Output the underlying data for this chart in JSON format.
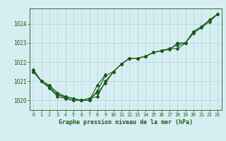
{
  "title": "Graphe pression niveau de la mer (hPa)",
  "background_color": "#d6eef2",
  "grid_color": "#b0d4dc",
  "line_color": "#1a5c1a",
  "xlim": [
    -0.5,
    23.5
  ],
  "ylim": [
    1019.5,
    1024.8
  ],
  "yticks": [
    1020,
    1021,
    1022,
    1023,
    1024
  ],
  "xticks": [
    0,
    1,
    2,
    3,
    4,
    5,
    6,
    7,
    8,
    9,
    10,
    11,
    12,
    13,
    14,
    15,
    16,
    17,
    18,
    19,
    20,
    21,
    22,
    23
  ],
  "series": [
    {
      "x": [
        0,
        1,
        2,
        3,
        4,
        5,
        6,
        7,
        8,
        9,
        10,
        11,
        12,
        13,
        14,
        15,
        16,
        17,
        18,
        19,
        20,
        21,
        22,
        23
      ],
      "y": [
        1021.6,
        1021.0,
        1020.8,
        1020.4,
        1020.2,
        1020.1,
        1020.0,
        1020.1,
        1020.2,
        1021.0,
        1021.5,
        1021.9,
        1022.2,
        1022.2,
        1022.3,
        1022.5,
        1022.6,
        1022.7,
        1022.9,
        1023.0,
        1023.5,
        1023.8,
        1024.1,
        1024.5
      ]
    },
    {
      "x": [
        0,
        1,
        2,
        3,
        4,
        5,
        6,
        7,
        8,
        9,
        10,
        11,
        12,
        13,
        14,
        15,
        16,
        17,
        18,
        19,
        20,
        21,
        22,
        23
      ],
      "y": [
        1021.6,
        1021.0,
        1020.7,
        1020.3,
        1020.15,
        1020.0,
        1020.0,
        1020.0,
        1020.5,
        1021.3,
        1021.5,
        1021.9,
        1022.2,
        1022.2,
        1022.3,
        1022.5,
        1022.6,
        1022.7,
        1022.7,
        1023.0,
        1023.6,
        1023.85,
        1024.2,
        1024.5
      ]
    },
    {
      "x": [
        0,
        1,
        2,
        3,
        4,
        5,
        6,
        7,
        8,
        9,
        10,
        11,
        12,
        13,
        14,
        15,
        16,
        17,
        18,
        19,
        20,
        21,
        22,
        23
      ],
      "y": [
        1021.5,
        1021.0,
        1020.7,
        1020.3,
        1020.2,
        1020.1,
        1020.0,
        1020.1,
        1020.4,
        1020.9,
        1021.5,
        1021.9,
        1022.2,
        1022.2,
        1022.3,
        1022.5,
        1022.6,
        1022.65,
        1023.0,
        1023.0,
        1023.6,
        1023.85,
        1024.2,
        1024.5
      ]
    }
  ],
  "special_series": [
    {
      "x": [
        0,
        1,
        2,
        3,
        4,
        5,
        6,
        7,
        8,
        9
      ],
      "y": [
        1021.5,
        1021.0,
        1020.65,
        1020.2,
        1020.1,
        1020.0,
        1020.0,
        1020.0,
        1020.8,
        1021.35
      ]
    }
  ]
}
